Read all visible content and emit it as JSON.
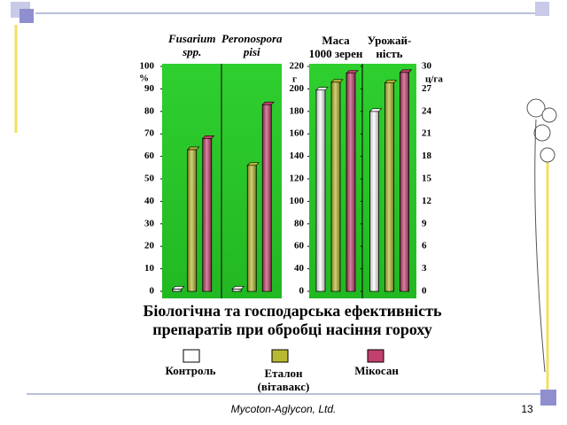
{
  "slide": {
    "footer": "Mycoton-Aglycon, Ltd.",
    "page_number": "13"
  },
  "chart_data": [
    {
      "type": "bar",
      "title": "Біологічна та господарська ефективність препаратів при обробці насіння гороху",
      "categories": [
        "Fusarium spp.",
        "Peronospora pisi"
      ],
      "y_unit": "%",
      "series": [
        {
          "name": "Контроль",
          "color": "#ffffff",
          "values": [
            1,
            1
          ]
        },
        {
          "name": "Еталон\n(вітавакс)",
          "color": "#b8b832",
          "values": [
            63,
            56
          ]
        },
        {
          "name": "Мікосан",
          "color": "#c2406e",
          "values": [
            68,
            83
          ]
        }
      ],
      "ylim": [
        0,
        100
      ],
      "yticks": [
        0,
        10,
        20,
        30,
        40,
        50,
        60,
        70,
        80,
        90,
        100
      ]
    },
    {
      "type": "bar",
      "categories": [
        "Маса\n1000 зерен"
      ],
      "y_unit": "г",
      "series": [
        {
          "color": "#ffffff",
          "values": [
            199
          ]
        },
        {
          "color": "#b8b832",
          "values": [
            206
          ]
        },
        {
          "color": "#c2406e",
          "values": [
            214
          ]
        }
      ],
      "ylim": [
        0,
        220
      ],
      "yticks": [
        0,
        40,
        60,
        80,
        100,
        120,
        140,
        160,
        180,
        200,
        220
      ]
    },
    {
      "type": "bar",
      "categories": [
        "Урожай-\nність"
      ],
      "y_unit": "ц/га",
      "series": [
        {
          "color": "#ffffff",
          "values": [
            24
          ]
        },
        {
          "color": "#b8b832",
          "values": [
            27.8
          ]
        },
        {
          "color": "#c2406e",
          "values": [
            29.2
          ]
        }
      ],
      "ylim": [
        0,
        30
      ],
      "yticks": [
        0,
        3,
        6,
        9,
        12,
        15,
        18,
        21,
        24,
        27,
        30
      ]
    }
  ]
}
